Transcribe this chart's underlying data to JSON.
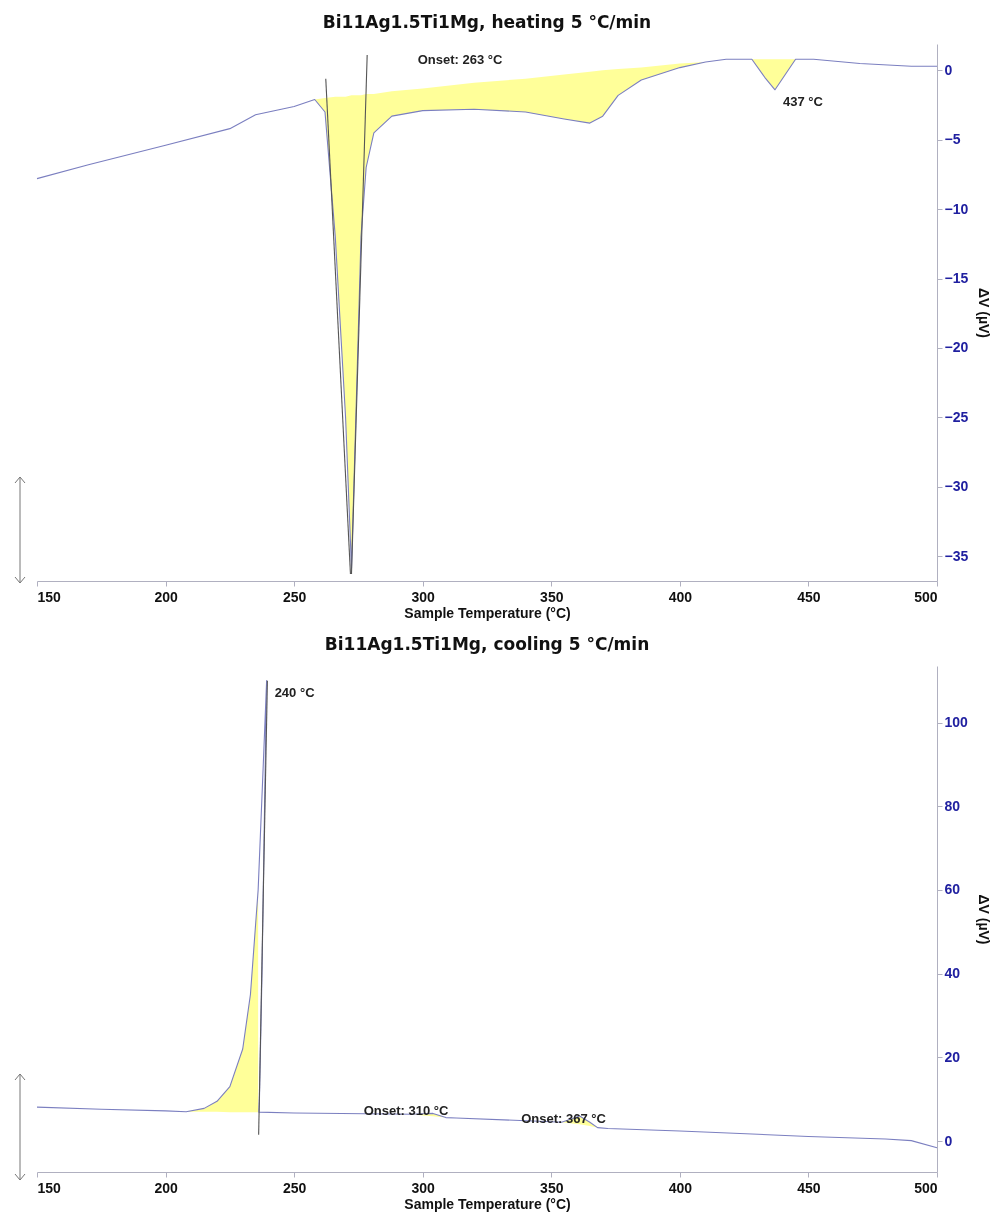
{
  "chart_data": [
    {
      "type": "line",
      "title": "Bi11Ag1.5Ti1Mg, heating 5 °C/min",
      "xlabel": "Sample Temperature (°C)",
      "ylabel": "ΔV (µV)",
      "xlim": [
        150,
        500
      ],
      "ylim": [
        -36.8,
        1.9
      ],
      "xticks": [
        150,
        200,
        250,
        300,
        350,
        400,
        450,
        500
      ],
      "yticks": [
        0,
        -5,
        -10,
        -15,
        -20,
        -25,
        -30,
        -35
      ],
      "series": [
        {
          "color": "#7b7fc0",
          "x": [
            150,
            170,
            200,
            225,
            235,
            250,
            258,
            262,
            266,
            270,
            272.3,
            274,
            276,
            278,
            281,
            288,
            300,
            320,
            340,
            355,
            365,
            370,
            376,
            385,
            400,
            410,
            418,
            428,
            433,
            437,
            441,
            445,
            452,
            470,
            490,
            500
          ],
          "values": [
            -7.8,
            -6.8,
            -5.4,
            -4.2,
            -3.2,
            -2.6,
            -2.1,
            -3,
            -12,
            -25,
            -35.9,
            -25,
            -12,
            -7,
            -4.5,
            -3.3,
            -2.9,
            -2.8,
            -3.0,
            -3.5,
            -3.8,
            -3.3,
            -1.8,
            -0.7,
            0.2,
            0.6,
            0.8,
            0.8,
            -0.5,
            -1.4,
            -0.3,
            0.8,
            0.8,
            0.5,
            0.3,
            0.3
          ],
          "lower": [
            null,
            null,
            null,
            null,
            null,
            null,
            -2.1,
            -3,
            -12,
            -25,
            -35.9,
            -25,
            -12,
            -7,
            -4.5,
            -3.3,
            -2.9,
            -2.8,
            -3.0,
            -3.5,
            -3.8,
            -3.3,
            -1.8,
            -0.7,
            0.2,
            0.6,
            null,
            0.8,
            -0.5,
            -1.4,
            -0.3,
            0.8,
            null,
            null,
            null,
            null
          ],
          "upper": [
            null,
            null,
            null,
            null,
            null,
            null,
            -2.1,
            -2.0,
            -1.9,
            -1.9,
            -1.8,
            -1.8,
            -1.8,
            -1.7,
            -1.7,
            -1.5,
            -1.3,
            -0.9,
            -0.6,
            -0.3,
            -0.1,
            0.0,
            0.1,
            0.2,
            0.5,
            0.6,
            null,
            0.8,
            0.8,
            0.8,
            0.8,
            0.8,
            null,
            null,
            null,
            null
          ]
        },
        {
          "type": "line",
          "color": "#555555",
          "x": [
            262.3,
            271.9
          ],
          "values": [
            -0.6,
            -36.3
          ]
        },
        {
          "type": "line",
          "color": "#555555",
          "x": [
            278.4,
            272.3
          ],
          "values": [
            1.1,
            -36.3
          ]
        }
      ],
      "annotations": [
        "Onset: 263 °C",
        {
          "text": "437 °C",
          "x": 437,
          "y": -1.4
        }
      ]
    },
    {
      "type": "line",
      "title": "Bi11Ag1.5Ti1Mg, cooling 5 °C/min",
      "xlabel": "Sample Temperature (°C)",
      "ylabel": "ΔV (µV)",
      "xlim": [
        150,
        500
      ],
      "ylim": [
        -7.4,
        113.5
      ],
      "xticks": [
        150,
        200,
        250,
        300,
        350,
        400,
        450,
        500
      ],
      "yticks": [
        0,
        20,
        40,
        60,
        80,
        100
      ],
      "series": [
        {
          "color": "#7b7fc0",
          "x": [
            150,
            175,
            200,
            208,
            215,
            220,
            225,
            230,
            233,
            236,
            238,
            239.3,
            238.5,
            237.5,
            236.5,
            236.3,
            250,
            296,
            300,
            304,
            309,
            313,
            350,
            354,
            358,
            361,
            365,
            368,
            372,
            400,
            450,
            480,
            490,
            500
          ],
          "values": [
            8.1,
            7.6,
            7.2,
            7.0,
            7.8,
            9.5,
            13,
            22,
            35,
            60,
            90,
            110,
            80,
            40,
            10,
            6.9,
            6.7,
            6.4,
            6.5,
            6.6,
            5.6,
            5.5,
            4.6,
            4.5,
            5.3,
            6.0,
            4.5,
            3.2,
            3.0,
            2.4,
            1.1,
            0.5,
            0.1,
            -1.6
          ],
          "lower": [
            null,
            null,
            null,
            7.0,
            7.0,
            7.0,
            6.9,
            6.9,
            6.9,
            6.9,
            null,
            null,
            null,
            null,
            null,
            null,
            null,
            6.4,
            6.1,
            5.9,
            5.6,
            null,
            null,
            4.5,
            4.2,
            4.0,
            3.6,
            3.2,
            null,
            null,
            null,
            null,
            null,
            null
          ],
          "upper": [
            null,
            null,
            null,
            7.0,
            7.8,
            9.5,
            13,
            22,
            35,
            60,
            null,
            null,
            null,
            null,
            null,
            null,
            null,
            6.4,
            6.5,
            6.6,
            5.6,
            null,
            null,
            4.5,
            5.3,
            6.0,
            4.5,
            3.2,
            null,
            null,
            null,
            null,
            null,
            null
          ]
        },
        {
          "type": "line",
          "color": "#555555",
          "x": [
            236.2,
            239.6
          ],
          "values": [
            1.5,
            110
          ]
        }
      ],
      "annotations": [
        {
          "text": "240 °C",
          "x": 239.3,
          "y": 110
        },
        "Onset: 310 °C",
        "Onset: 367 °C"
      ]
    }
  ]
}
